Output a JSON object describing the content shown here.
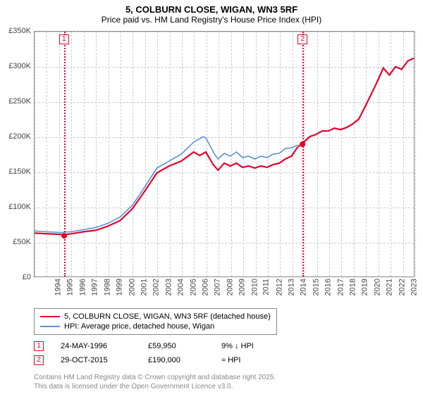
{
  "title": "5, COLBURN CLOSE, WIGAN, WN3 5RF",
  "subtitle": "Price paid vs. HM Land Registry's House Price Index (HPI)",
  "chart": {
    "type": "line",
    "background_color": "#ffffff",
    "grid_color": "#cccccc",
    "axis_color": "#888888",
    "ylim": [
      0,
      350000
    ],
    "ytick_step": 50000,
    "yticks": [
      "£0",
      "£50K",
      "£100K",
      "£150K",
      "£200K",
      "£250K",
      "£300K",
      "£350K"
    ],
    "xlim": [
      1994,
      2025
    ],
    "xticks": [
      1994,
      1995,
      1996,
      1997,
      1998,
      1999,
      2000,
      2001,
      2002,
      2003,
      2004,
      2005,
      2006,
      2007,
      2008,
      2009,
      2010,
      2011,
      2012,
      2013,
      2014,
      2015,
      2016,
      2017,
      2018,
      2019,
      2020,
      2021,
      2022,
      2023,
      2024,
      2025
    ],
    "series": [
      {
        "name": "5, COLBURN CLOSE, WIGAN, WN3 5RF (detached house)",
        "color": "#e4002b",
        "line_width": 2.2,
        "points": [
          [
            1994,
            62000
          ],
          [
            1996.4,
            59950
          ],
          [
            1997,
            61000
          ],
          [
            1998,
            64000
          ],
          [
            1999,
            66000
          ],
          [
            2000,
            72000
          ],
          [
            2001,
            80000
          ],
          [
            2002,
            97000
          ],
          [
            2003,
            122000
          ],
          [
            2004,
            148000
          ],
          [
            2005,
            158000
          ],
          [
            2006,
            165000
          ],
          [
            2007,
            178000
          ],
          [
            2007.5,
            173000
          ],
          [
            2008,
            178000
          ],
          [
            2008.6,
            160000
          ],
          [
            2009,
            152000
          ],
          [
            2009.5,
            162000
          ],
          [
            2010,
            158000
          ],
          [
            2010.5,
            162000
          ],
          [
            2011,
            156000
          ],
          [
            2011.5,
            158000
          ],
          [
            2012,
            155000
          ],
          [
            2012.5,
            158000
          ],
          [
            2013,
            156000
          ],
          [
            2013.5,
            160000
          ],
          [
            2014,
            162000
          ],
          [
            2014.5,
            168000
          ],
          [
            2015,
            172000
          ],
          [
            2015.5,
            185000
          ],
          [
            2015.83,
            190000
          ],
          [
            2016,
            192000
          ],
          [
            2016.5,
            200000
          ],
          [
            2017,
            203000
          ],
          [
            2017.5,
            208000
          ],
          [
            2018,
            208000
          ],
          [
            2018.5,
            212000
          ],
          [
            2019,
            210000
          ],
          [
            2019.5,
            213000
          ],
          [
            2020,
            218000
          ],
          [
            2020.5,
            225000
          ],
          [
            2021,
            242000
          ],
          [
            2021.5,
            260000
          ],
          [
            2022,
            278000
          ],
          [
            2022.5,
            298000
          ],
          [
            2023,
            288000
          ],
          [
            2023.5,
            300000
          ],
          [
            2024,
            296000
          ],
          [
            2024.5,
            308000
          ],
          [
            2025,
            312000
          ]
        ]
      },
      {
        "name": "HPI: Average price, detached house, Wigan",
        "color": "#5b8fd6",
        "line_width": 1.6,
        "points": [
          [
            1994,
            65000
          ],
          [
            1995,
            64000
          ],
          [
            1996,
            63000
          ],
          [
            1997,
            64000
          ],
          [
            1998,
            67000
          ],
          [
            1999,
            70000
          ],
          [
            2000,
            76000
          ],
          [
            2001,
            85000
          ],
          [
            2002,
            102000
          ],
          [
            2003,
            128000
          ],
          [
            2004,
            155000
          ],
          [
            2005,
            165000
          ],
          [
            2006,
            175000
          ],
          [
            2007,
            192000
          ],
          [
            2007.8,
            200000
          ],
          [
            2008,
            198000
          ],
          [
            2008.7,
            175000
          ],
          [
            2009,
            168000
          ],
          [
            2009.5,
            176000
          ],
          [
            2010,
            172000
          ],
          [
            2010.5,
            178000
          ],
          [
            2011,
            170000
          ],
          [
            2011.5,
            172000
          ],
          [
            2012,
            168000
          ],
          [
            2012.5,
            172000
          ],
          [
            2013,
            170000
          ],
          [
            2013.5,
            175000
          ],
          [
            2014,
            176000
          ],
          [
            2014.5,
            183000
          ],
          [
            2015,
            184000
          ],
          [
            2015.5,
            188000
          ]
        ]
      }
    ],
    "markers": [
      {
        "id": "1",
        "x": 1996.4,
        "y": 59950
      },
      {
        "id": "2",
        "x": 2015.83,
        "y": 190000
      }
    ]
  },
  "legend": {
    "items": [
      {
        "label": "5, COLBURN CLOSE, WIGAN, WN3 5RF (detached house)",
        "color": "#e4002b"
      },
      {
        "label": "HPI: Average price, detached house, Wigan",
        "color": "#5b8fd6"
      }
    ]
  },
  "transactions": [
    {
      "id": "1",
      "date": "24-MAY-1996",
      "price": "£59,950",
      "note": "9% ↓ HPI"
    },
    {
      "id": "2",
      "date": "29-OCT-2015",
      "price": "£190,000",
      "note": "≈ HPI"
    }
  ],
  "footer_lines": [
    "Contains HM Land Registry data © Crown copyright and database right 2025.",
    "This data is licensed under the Open Government Licence v3.0."
  ]
}
